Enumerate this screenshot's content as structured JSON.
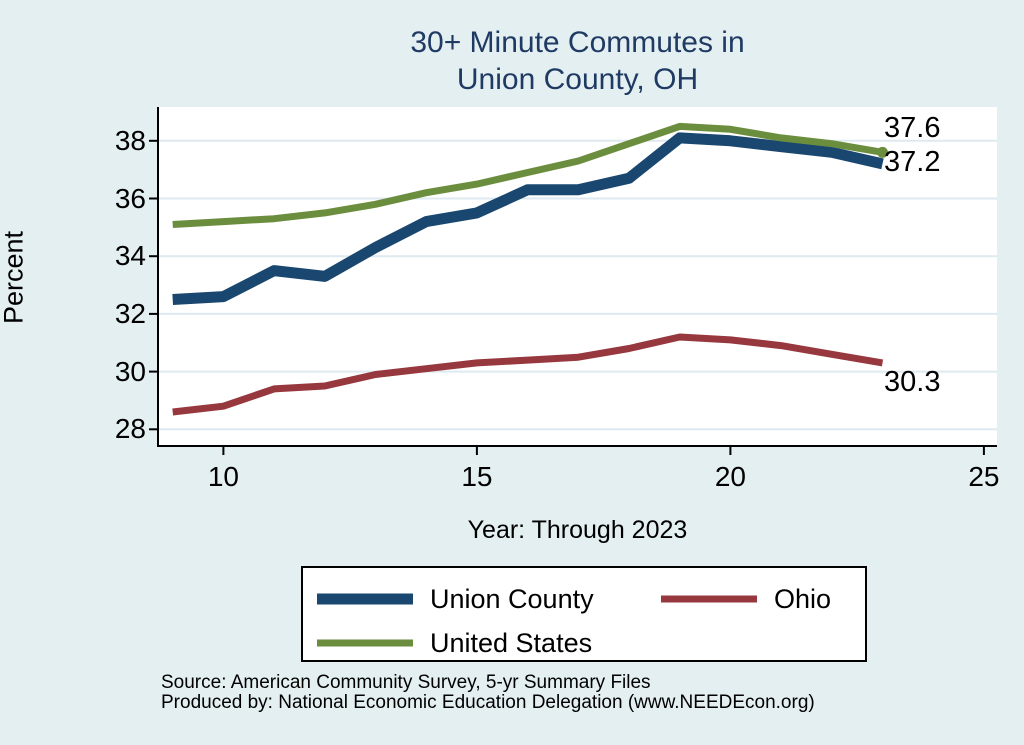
{
  "title": {
    "line1": "30+ Minute Commutes in",
    "line2": "Union County, OH"
  },
  "axes": {
    "y_label": "Percent",
    "x_label": "Year: Through 2023",
    "y_ticks": [
      28,
      30,
      32,
      34,
      36,
      38
    ],
    "x_ticks": [
      10,
      15,
      20,
      25
    ]
  },
  "end_labels": {
    "united_states": "37.6",
    "union_county": "37.2",
    "ohio": "30.3"
  },
  "legend": {
    "items": [
      {
        "label": "Union County",
        "color": "#1a476f"
      },
      {
        "label": "Ohio",
        "color": "#97383f"
      },
      {
        "label": "United States",
        "color": "#6b8e3e"
      }
    ]
  },
  "footer": {
    "source": "Source: American Community Survey, 5-yr Summary Files",
    "produced_by": "Produced by: National Economic Education Delegation (www.NEEDEcon.org)"
  },
  "colors": {
    "background": "#e4eff2",
    "plot_background": "#ffffff",
    "gridline": "#dfeaf0",
    "axis": "#000000",
    "title": "#1f3a63",
    "union_county": "#1a476f",
    "ohio": "#97383f",
    "united_states": "#6b8e3e"
  },
  "chart_data": {
    "type": "line",
    "title": "30+ Minute Commutes in Union County, OH",
    "xlabel": "Year: Through 2023",
    "ylabel": "Percent",
    "x": [
      9,
      10,
      11,
      12,
      13,
      14,
      15,
      16,
      17,
      18,
      19,
      20,
      21,
      22,
      23
    ],
    "series": [
      {
        "name": "Union County",
        "color": "#1a476f",
        "width": 11,
        "values": [
          32.5,
          32.6,
          33.5,
          33.3,
          34.3,
          35.2,
          35.5,
          36.3,
          36.3,
          36.7,
          38.1,
          38.0,
          37.8,
          37.6,
          37.2
        ],
        "end_label": "37.2"
      },
      {
        "name": "Ohio",
        "color": "#97383f",
        "width": 7,
        "values": [
          28.6,
          28.8,
          29.4,
          29.5,
          29.9,
          30.1,
          30.3,
          30.4,
          30.5,
          30.8,
          31.2,
          31.1,
          30.9,
          30.6,
          30.3
        ],
        "end_label": "30.3"
      },
      {
        "name": "United States",
        "color": "#6b8e3e",
        "width": 7,
        "end_dot": true,
        "values": [
          35.1,
          35.2,
          35.3,
          35.5,
          35.8,
          36.2,
          36.5,
          36.9,
          37.3,
          37.9,
          38.5,
          38.4,
          38.1,
          37.9,
          37.6
        ],
        "end_label": "37.6"
      }
    ],
    "xlim": [
      8.7,
      25.3
    ],
    "ylim": [
      27.4,
      39.2
    ],
    "x_ticks": [
      10,
      15,
      20,
      25
    ],
    "y_ticks": [
      28,
      30,
      32,
      34,
      36,
      38
    ],
    "grid": "horizontal",
    "legend_position": "bottom"
  }
}
